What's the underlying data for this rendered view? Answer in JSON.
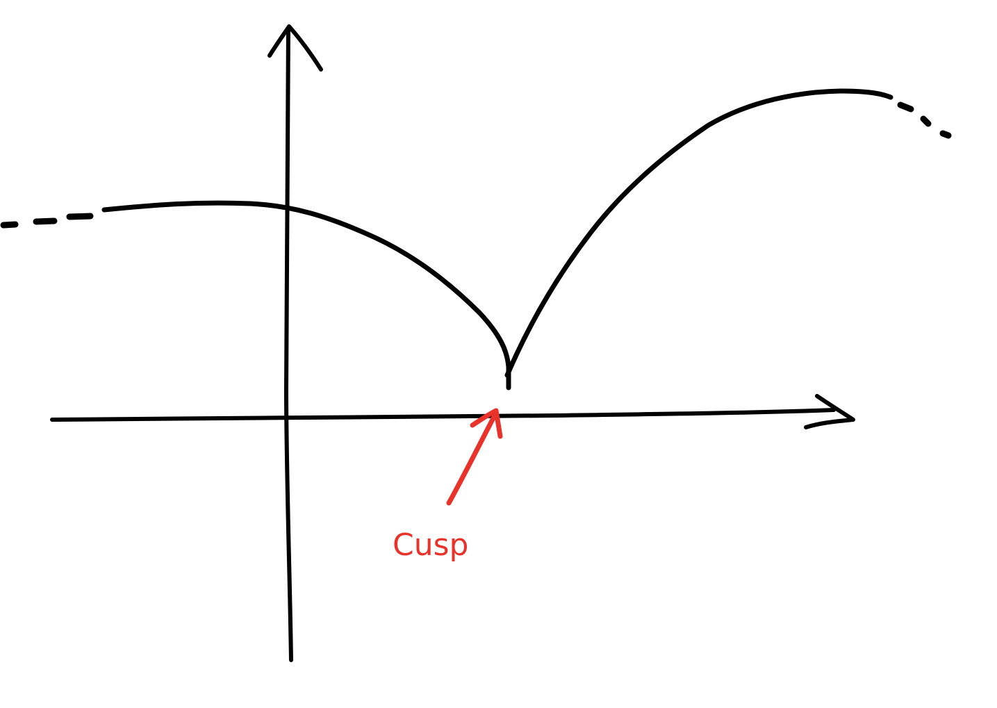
{
  "colors": {
    "ink": "#000000",
    "annotation": "#e8322a",
    "background": "#ffffff"
  },
  "annotation": {
    "label": "Cusp"
  },
  "icons": {
    "axis_arrowheads": "arrow-head-icon",
    "annotation_pointer": "arrow-icon"
  }
}
